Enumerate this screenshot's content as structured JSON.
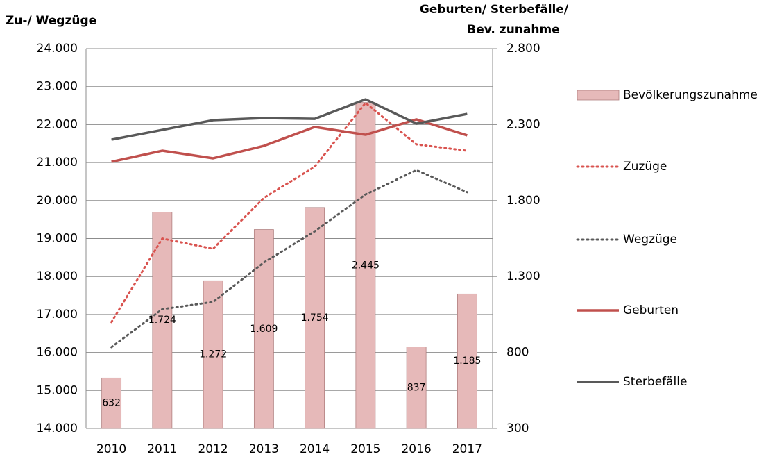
{
  "chart_data": {
    "type": "bar",
    "ylabel": "Zu-/ Wegzüge",
    "y2label": [
      "Geburten/ Sterbefälle/",
      "Bev. zunahme"
    ],
    "categories": [
      "2010",
      "2011",
      "2012",
      "2013",
      "2014",
      "2015",
      "2016",
      "2017"
    ],
    "ylim": [
      14000,
      24000
    ],
    "yticks": [
      {
        "value": 14000,
        "label": "14.000"
      },
      {
        "value": 15000,
        "label": "15.000"
      },
      {
        "value": 16000,
        "label": "16.000"
      },
      {
        "value": 17000,
        "label": "17.000"
      },
      {
        "value": 18000,
        "label": "18.000"
      },
      {
        "value": 19000,
        "label": "19.000"
      },
      {
        "value": 20000,
        "label": "20.000"
      },
      {
        "value": 21000,
        "label": "21.000"
      },
      {
        "value": 22000,
        "label": "22.000"
      },
      {
        "value": 23000,
        "label": "23.000"
      },
      {
        "value": 24000,
        "label": "24.000"
      }
    ],
    "y2lim": [
      300,
      2800
    ],
    "y2ticks": [
      300,
      800,
      {
        "value": 1300,
        "label": "1.300"
      },
      {
        "value": 1800,
        "label": "1.800"
      },
      {
        "value": 2300,
        "label": "2.300"
      },
      {
        "value": 2800,
        "label": "2.800"
      }
    ],
    "grid": true,
    "legend": "right",
    "series": [
      {
        "name": "Bevölkerungszunahme",
        "type": "bar",
        "axis": "y2",
        "color": "#e6b9b9",
        "values": [
          632,
          1724,
          1272,
          1609,
          1754,
          2445,
          837,
          1185
        ],
        "value_labels": [
          "632",
          "1.724",
          "1.272",
          "1.609",
          "1.754",
          "2.445",
          "837",
          "1.185"
        ]
      },
      {
        "name": "Zuzüge",
        "type": "line",
        "style": "dotted",
        "color": "#d9534f",
        "values": [
          16800,
          19000,
          18730,
          20070,
          20890,
          22570,
          21480,
          21310
        ]
      },
      {
        "name": "Wegzüge",
        "type": "line",
        "style": "dotted",
        "color": "#595959",
        "values": [
          16140,
          17140,
          17330,
          18370,
          19190,
          20160,
          20800,
          20220
        ]
      },
      {
        "name": "Geburten",
        "type": "line",
        "style": "solid",
        "axis": "y2",
        "color": "#c0504d",
        "values": [
          2055,
          2128,
          2078,
          2160,
          2284,
          2233,
          2334,
          2229
        ]
      },
      {
        "name": "Sterbefälle",
        "type": "line",
        "style": "solid",
        "axis": "y2",
        "color": "#595959",
        "values": [
          2201,
          2265,
          2329,
          2343,
          2338,
          2466,
          2306,
          2370
        ]
      }
    ]
  }
}
